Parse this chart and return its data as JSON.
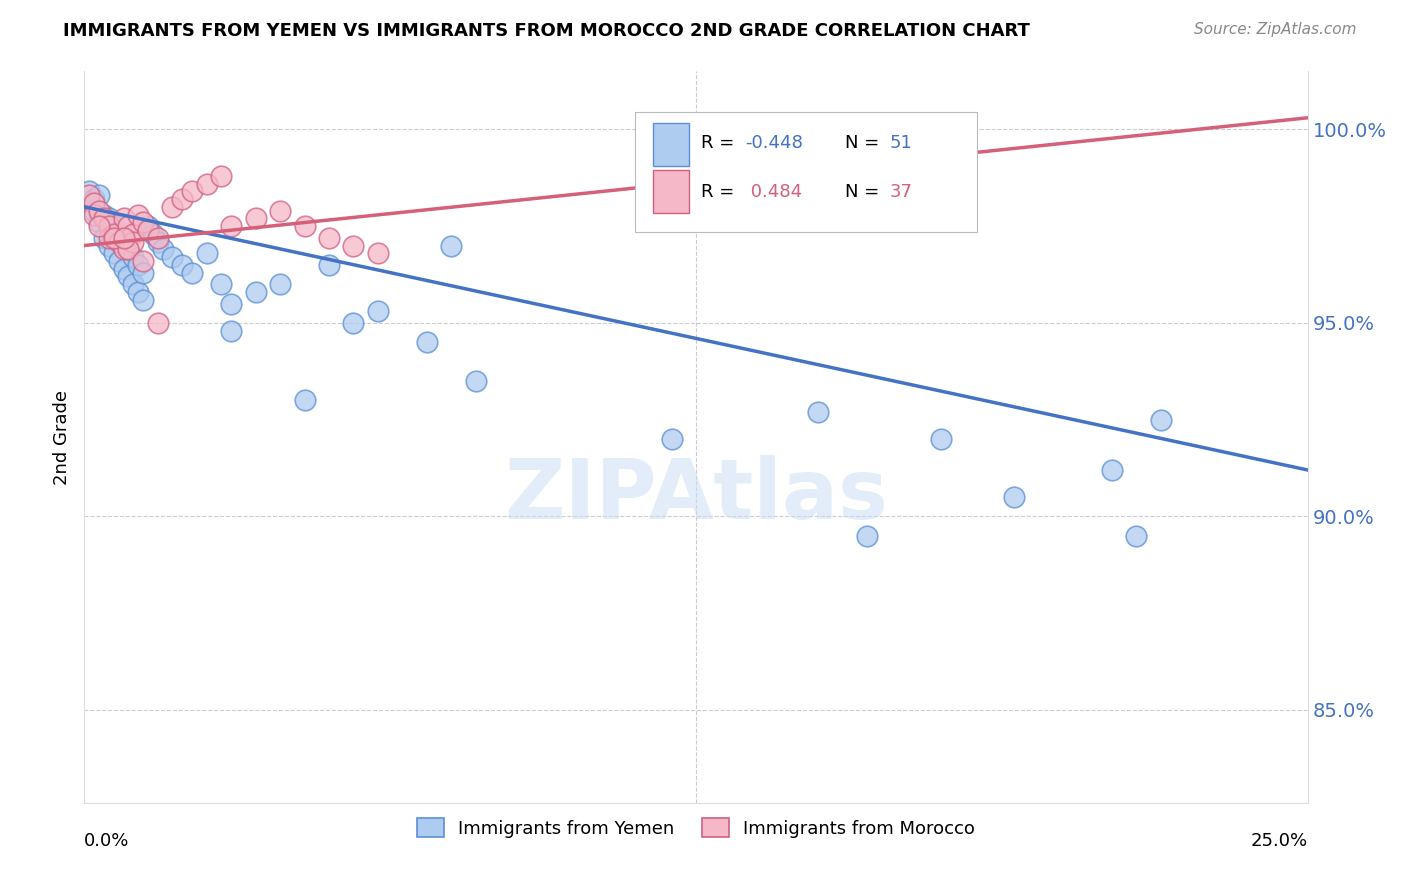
{
  "title": "IMMIGRANTS FROM YEMEN VS IMMIGRANTS FROM MOROCCO 2ND GRADE CORRELATION CHART",
  "source": "Source: ZipAtlas.com",
  "ylabel": "2nd Grade",
  "y_ticks": [
    0.85,
    0.9,
    0.95,
    1.0
  ],
  "y_tick_labels": [
    "85.0%",
    "90.0%",
    "95.0%",
    "100.0%"
  ],
  "xlim": [
    0.0,
    0.25
  ],
  "ylim": [
    0.826,
    1.015
  ],
  "legend_label_bottom_blue": "Immigrants from Yemen",
  "legend_label_bottom_pink": "Immigrants from Morocco",
  "blue_color": "#aecbf0",
  "blue_edge_color": "#5b8fd4",
  "blue_line_color": "#4472c4",
  "pink_color": "#f5b8c8",
  "pink_edge_color": "#d06080",
  "pink_line_color": "#d4607a",
  "blue_R": -0.448,
  "blue_N": 51,
  "pink_R": 0.484,
  "pink_N": 37,
  "blue_scatter_x": [
    0.001,
    0.002,
    0.002,
    0.003,
    0.003,
    0.004,
    0.004,
    0.005,
    0.005,
    0.006,
    0.006,
    0.007,
    0.007,
    0.008,
    0.008,
    0.009,
    0.009,
    0.01,
    0.01,
    0.011,
    0.011,
    0.012,
    0.012,
    0.013,
    0.014,
    0.015,
    0.016,
    0.018,
    0.02,
    0.022,
    0.025,
    0.028,
    0.03,
    0.035,
    0.04,
    0.05,
    0.055,
    0.06,
    0.07,
    0.075,
    0.03,
    0.045,
    0.08,
    0.12,
    0.15,
    0.16,
    0.175,
    0.19,
    0.21,
    0.215,
    0.22
  ],
  "blue_scatter_y": [
    0.984,
    0.982,
    0.979,
    0.983,
    0.976,
    0.978,
    0.972,
    0.977,
    0.97,
    0.975,
    0.968,
    0.973,
    0.966,
    0.971,
    0.964,
    0.969,
    0.962,
    0.967,
    0.96,
    0.965,
    0.958,
    0.963,
    0.956,
    0.975,
    0.973,
    0.971,
    0.969,
    0.967,
    0.965,
    0.963,
    0.968,
    0.96,
    0.955,
    0.958,
    0.96,
    0.965,
    0.95,
    0.953,
    0.945,
    0.97,
    0.948,
    0.93,
    0.935,
    0.92,
    0.927,
    0.895,
    0.92,
    0.905,
    0.912,
    0.895,
    0.925
  ],
  "pink_scatter_x": [
    0.001,
    0.002,
    0.002,
    0.003,
    0.004,
    0.005,
    0.005,
    0.006,
    0.007,
    0.008,
    0.008,
    0.009,
    0.01,
    0.01,
    0.011,
    0.012,
    0.013,
    0.015,
    0.018,
    0.02,
    0.022,
    0.025,
    0.028,
    0.03,
    0.035,
    0.04,
    0.045,
    0.05,
    0.055,
    0.06,
    0.003,
    0.006,
    0.009,
    0.012,
    0.015,
    0.18,
    0.008
  ],
  "pink_scatter_y": [
    0.983,
    0.981,
    0.978,
    0.979,
    0.977,
    0.975,
    0.972,
    0.973,
    0.971,
    0.969,
    0.977,
    0.975,
    0.973,
    0.971,
    0.978,
    0.976,
    0.974,
    0.972,
    0.98,
    0.982,
    0.984,
    0.986,
    0.988,
    0.975,
    0.977,
    0.979,
    0.975,
    0.972,
    0.97,
    0.968,
    0.975,
    0.972,
    0.969,
    0.966,
    0.95,
    1.001,
    0.972
  ],
  "blue_line_x0": 0.0,
  "blue_line_y0": 0.98,
  "blue_line_x1": 0.25,
  "blue_line_y1": 0.912,
  "pink_line_x0": 0.0,
  "pink_line_y0": 0.97,
  "pink_line_x1": 0.25,
  "pink_line_y1": 1.003,
  "watermark_text": "ZIPAtlas",
  "grid_color": "#cccccc",
  "legend_R_blue_text": "R = -0.448",
  "legend_N_blue_text": "N = 51",
  "legend_R_pink_text": "R =  0.484",
  "legend_N_pink_text": "N = 37"
}
